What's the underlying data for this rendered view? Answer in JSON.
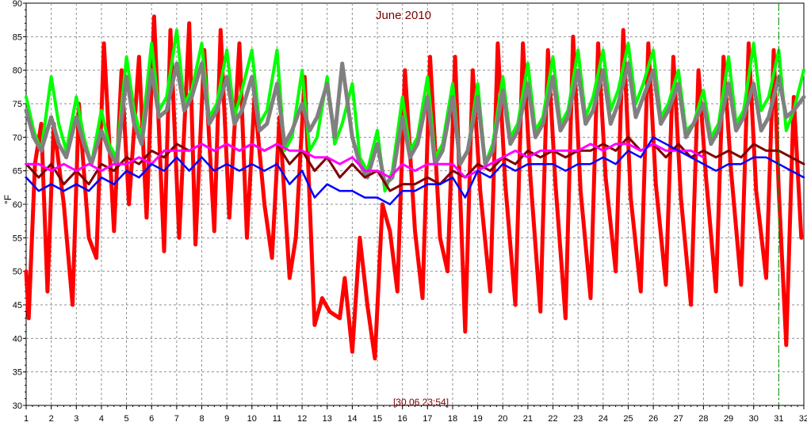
{
  "chart_data": {
    "type": "line",
    "title": "June 2010",
    "ylabel": "°F",
    "xlabel": "",
    "cursor_label": "[30.06 23:54]",
    "xlim": [
      1,
      32
    ],
    "ylim": [
      30,
      90
    ],
    "grid": true,
    "x_ticks": [
      "1",
      "2",
      "3",
      "4",
      "5",
      "6",
      "7",
      "8",
      "9",
      "10",
      "11",
      "12",
      "13",
      "14",
      "15",
      "16",
      "17",
      "18",
      "19",
      "20",
      "21",
      "22",
      "23",
      "24",
      "25",
      "26",
      "27",
      "28",
      "29",
      "30",
      "31",
      "32"
    ],
    "y_ticks": [
      "30",
      "35",
      "40",
      "45",
      "50",
      "55",
      "60",
      "65",
      "70",
      "75",
      "80",
      "85",
      "90"
    ],
    "cursor_x": 31.0,
    "series": [
      {
        "color": "#ff0000",
        "stroke": 5,
        "x": [
          1,
          1.1,
          1.35,
          1.6,
          1.85,
          2.1,
          2.5,
          2.85,
          3.1,
          3.5,
          3.8,
          4.1,
          4.5,
          4.8,
          5.1,
          5.5,
          5.8,
          6.1,
          6.5,
          6.75,
          7.1,
          7.5,
          7.75,
          8.1,
          8.5,
          8.75,
          9.1,
          9.5,
          9.8,
          10.1,
          10.5,
          10.8,
          11.1,
          11.5,
          11.75,
          12.1,
          12.5,
          12.8,
          13.1,
          13.5,
          13.7,
          14.0,
          14.3,
          14.6,
          14.9,
          15.2,
          15.5,
          15.8,
          16.1,
          16.5,
          16.8,
          17.1,
          17.5,
          17.8,
          18.1,
          18.5,
          18.8,
          19.1,
          19.5,
          19.8,
          20.1,
          20.5,
          20.8,
          21.1,
          21.5,
          21.8,
          22.1,
          22.5,
          22.8,
          23.1,
          23.5,
          23.8,
          24.1,
          24.5,
          24.8,
          25.1,
          25.5,
          25.8,
          26.1,
          26.5,
          26.8,
          27.1,
          27.5,
          27.8,
          28.1,
          28.5,
          28.8,
          29.1,
          29.5,
          29.8,
          30.1,
          30.5,
          30.8,
          31.0,
          31.3,
          31.6,
          31.9
        ],
        "y": [
          50,
          43,
          66,
          72,
          47,
          72,
          60,
          45,
          75,
          55,
          52,
          84,
          56,
          80,
          60,
          82,
          58,
          88,
          53,
          86,
          55,
          87,
          54,
          83,
          56,
          86,
          58,
          84,
          55,
          76,
          60,
          52,
          73,
          49,
          55,
          79,
          42,
          46,
          44,
          43,
          49,
          38,
          55,
          45,
          37,
          60,
          56,
          47,
          80,
          56,
          46,
          82,
          55,
          50,
          82,
          41,
          80,
          62,
          47,
          84,
          63,
          45,
          84,
          64,
          44,
          83,
          63,
          43,
          85,
          62,
          46,
          84,
          64,
          50,
          86,
          61,
          47,
          84,
          63,
          48,
          82,
          61,
          45,
          80,
          64,
          47,
          82,
          65,
          48,
          84,
          62,
          49,
          83,
          62,
          39,
          76,
          55
        ]
      },
      {
        "color": "#00ff00",
        "stroke": 4,
        "x": [
          1,
          1.3,
          1.6,
          2.0,
          2.3,
          2.6,
          3.0,
          3.3,
          3.6,
          4.0,
          4.3,
          4.6,
          5.0,
          5.3,
          5.6,
          6.0,
          6.3,
          6.6,
          7.0,
          7.3,
          7.6,
          8.0,
          8.3,
          8.6,
          9.0,
          9.3,
          9.6,
          10.0,
          10.3,
          10.6,
          11.0,
          11.3,
          11.6,
          12.0,
          12.3,
          12.6,
          13.0,
          13.3,
          13.6,
          14.0,
          14.3,
          14.6,
          15.0,
          15.3,
          15.6,
          16.0,
          16.3,
          16.6,
          17.0,
          17.3,
          17.6,
          18.0,
          18.3,
          18.6,
          19.0,
          19.3,
          19.6,
          20.0,
          20.3,
          20.6,
          21.0,
          21.3,
          21.6,
          22.0,
          22.3,
          22.6,
          23.0,
          23.3,
          23.6,
          24.0,
          24.3,
          24.6,
          25.0,
          25.3,
          25.6,
          26.0,
          26.3,
          26.6,
          27.0,
          27.3,
          27.6,
          28.0,
          28.3,
          28.6,
          29.0,
          29.3,
          29.6,
          30.0,
          30.3,
          30.6,
          31.0,
          31.3,
          31.6,
          32.0
        ],
        "y": [
          76,
          71,
          68,
          79,
          72,
          68,
          76,
          70,
          66,
          74,
          69,
          67,
          82,
          74,
          70,
          84,
          74,
          76,
          86,
          75,
          77,
          84,
          73,
          75,
          83,
          73,
          77,
          83,
          72,
          74,
          83,
          68,
          70,
          80,
          68,
          70,
          79,
          69,
          72,
          78,
          67,
          65,
          71,
          62,
          65,
          76,
          68,
          70,
          79,
          67,
          69,
          78,
          66,
          68,
          78,
          66,
          69,
          79,
          70,
          72,
          81,
          71,
          73,
          82,
          72,
          74,
          83,
          73,
          76,
          83,
          74,
          77,
          84,
          75,
          78,
          83,
          73,
          75,
          80,
          71,
          72,
          77,
          70,
          72,
          82,
          72,
          74,
          84,
          74,
          76,
          83,
          71,
          74,
          80
        ]
      },
      {
        "color": "#808080",
        "stroke": 5,
        "x": [
          1,
          1.3,
          1.6,
          2.0,
          2.3,
          2.6,
          3.0,
          3.3,
          3.6,
          4.0,
          4.3,
          4.6,
          5.0,
          5.3,
          5.6,
          6.0,
          6.3,
          6.6,
          7.0,
          7.3,
          7.6,
          8.0,
          8.3,
          8.6,
          9.0,
          9.3,
          9.6,
          10.0,
          10.3,
          10.6,
          11.0,
          11.3,
          11.6,
          12.0,
          12.3,
          12.6,
          13.0,
          13.3,
          13.6,
          14.0,
          14.3,
          14.6,
          15.0,
          15.3,
          15.6,
          16.0,
          16.3,
          16.6,
          17.0,
          17.3,
          17.6,
          18.0,
          18.3,
          18.6,
          19.0,
          19.3,
          19.6,
          20.0,
          20.3,
          20.6,
          21.0,
          21.3,
          21.6,
          22.0,
          22.3,
          22.6,
          23.0,
          23.3,
          23.6,
          24.0,
          24.3,
          24.6,
          25.0,
          25.3,
          25.6,
          26.0,
          26.3,
          26.6,
          27.0,
          27.3,
          27.6,
          28.0,
          28.3,
          28.6,
          29.0,
          29.3,
          29.6,
          30.0,
          30.3,
          30.6,
          31.0,
          31.3,
          31.6,
          32.0
        ],
        "y": [
          74,
          70,
          68,
          73,
          69,
          67,
          73,
          69,
          66,
          71,
          68,
          66,
          79,
          72,
          69,
          80,
          73,
          74,
          81,
          74,
          76,
          81,
          72,
          74,
          79,
          72,
          74,
          79,
          71,
          72,
          78,
          69,
          71,
          75,
          71,
          73,
          78,
          70,
          81,
          70,
          66,
          64,
          69,
          63,
          64,
          73,
          67,
          69,
          76,
          66,
          68,
          76,
          66,
          68,
          76,
          66,
          68,
          77,
          69,
          71,
          78,
          70,
          72,
          79,
          71,
          73,
          80,
          72,
          74,
          80,
          72,
          75,
          81,
          73,
          76,
          80,
          72,
          74,
          78,
          70,
          72,
          75,
          69,
          71,
          78,
          71,
          73,
          78,
          71,
          73,
          79,
          73,
          74,
          76
        ]
      },
      {
        "color": "#800000",
        "stroke": 3,
        "x": [
          1,
          1.5,
          2.0,
          2.5,
          3.0,
          3.5,
          4.0,
          4.5,
          5.0,
          5.5,
          6.0,
          6.5,
          7.0,
          7.5,
          8.0,
          8.5,
          9.0,
          9.5,
          10.0,
          10.5,
          11.0,
          11.5,
          12.0,
          12.5,
          13.0,
          13.5,
          14.0,
          14.5,
          15.0,
          15.5,
          16.0,
          16.5,
          17.0,
          17.5,
          18.0,
          18.5,
          19.0,
          19.5,
          20.0,
          20.5,
          21.0,
          21.5,
          22.0,
          22.5,
          23.0,
          23.5,
          24.0,
          24.5,
          25.0,
          25.5,
          26.0,
          26.5,
          27.0,
          27.5,
          28.0,
          28.5,
          29.0,
          29.5,
          30.0,
          30.5,
          31.0,
          31.5,
          32.0
        ],
        "y": [
          66,
          64,
          66,
          63,
          65,
          63,
          66,
          65,
          67,
          66,
          68,
          67,
          69,
          68,
          69,
          68,
          69,
          68,
          69,
          68,
          69,
          66,
          68,
          65,
          67,
          64,
          66,
          64,
          65,
          62,
          63,
          63,
          64,
          63,
          65,
          64,
          66,
          65,
          67,
          66,
          68,
          67,
          68,
          67,
          68,
          68,
          69,
          68,
          70,
          68,
          69,
          67,
          69,
          67,
          68,
          67,
          68,
          67,
          69,
          68,
          68,
          67,
          66
        ]
      },
      {
        "color": "#ff00ff",
        "stroke": 3,
        "x": [
          1,
          1.5,
          2.0,
          2.5,
          3.0,
          3.5,
          4.0,
          4.5,
          5.0,
          5.5,
          6.0,
          6.5,
          7.0,
          7.5,
          8.0,
          8.5,
          9.0,
          9.5,
          10.0,
          10.5,
          11.0,
          11.5,
          12.0,
          12.5,
          13.0,
          13.5,
          14.0,
          14.5,
          15.0,
          15.5,
          16.0,
          16.5,
          17.0,
          17.5,
          18.0,
          18.5,
          19.0,
          19.5,
          20.0,
          20.5,
          21.0,
          21.5,
          22.0,
          22.5,
          23.0,
          23.5,
          24.0,
          24.5,
          25.0,
          25.5,
          26.0,
          26.5,
          27.0,
          27.5,
          28.0
        ],
        "y": [
          66,
          66,
          65,
          66,
          65,
          66,
          65,
          66,
          66,
          67,
          66,
          68,
          68,
          68,
          69,
          68,
          69,
          68,
          69,
          68,
          69,
          68,
          68,
          67,
          67,
          66,
          67,
          65,
          65,
          64,
          66,
          65,
          66,
          66,
          66,
          64,
          65,
          66,
          67,
          68,
          67,
          68,
          68,
          68,
          68,
          69,
          68,
          69,
          69,
          68,
          69,
          68,
          68,
          68,
          67
        ]
      },
      {
        "color": "#0000ff",
        "stroke": 2.5,
        "x": [
          1,
          1.5,
          2.0,
          2.5,
          3.0,
          3.5,
          4.0,
          4.5,
          5.0,
          5.5,
          6.0,
          6.5,
          7.0,
          7.5,
          8.0,
          8.5,
          9.0,
          9.5,
          10.0,
          10.5,
          11.0,
          11.5,
          12.0,
          12.5,
          13.0,
          13.5,
          14.0,
          14.5,
          15.0,
          15.5,
          16.0,
          16.5,
          17.0,
          17.5,
          18.0,
          18.5,
          19.0,
          19.5,
          20.0,
          20.5,
          21.0,
          21.5,
          22.0,
          22.5,
          23.0,
          23.5,
          24.0,
          24.5,
          25.0,
          25.5,
          26.0,
          26.5,
          27.0,
          27.5,
          28.0,
          28.5,
          29.0,
          29.5,
          30.0,
          30.5,
          31.0,
          31.5,
          32.0
        ],
        "y": [
          64,
          62,
          63,
          62,
          63,
          62,
          64,
          63,
          65,
          64,
          66,
          65,
          67,
          65,
          67,
          65,
          66,
          65,
          66,
          65,
          66,
          63,
          65,
          61,
          63,
          62,
          62,
          61,
          61,
          60,
          62,
          62,
          63,
          63,
          64,
          61,
          65,
          64,
          66,
          65,
          66,
          66,
          66,
          65,
          66,
          66,
          67,
          66,
          68,
          67,
          70,
          69,
          68,
          67,
          66,
          65,
          66,
          66,
          67,
          67,
          66,
          65,
          64
        ]
      }
    ]
  }
}
